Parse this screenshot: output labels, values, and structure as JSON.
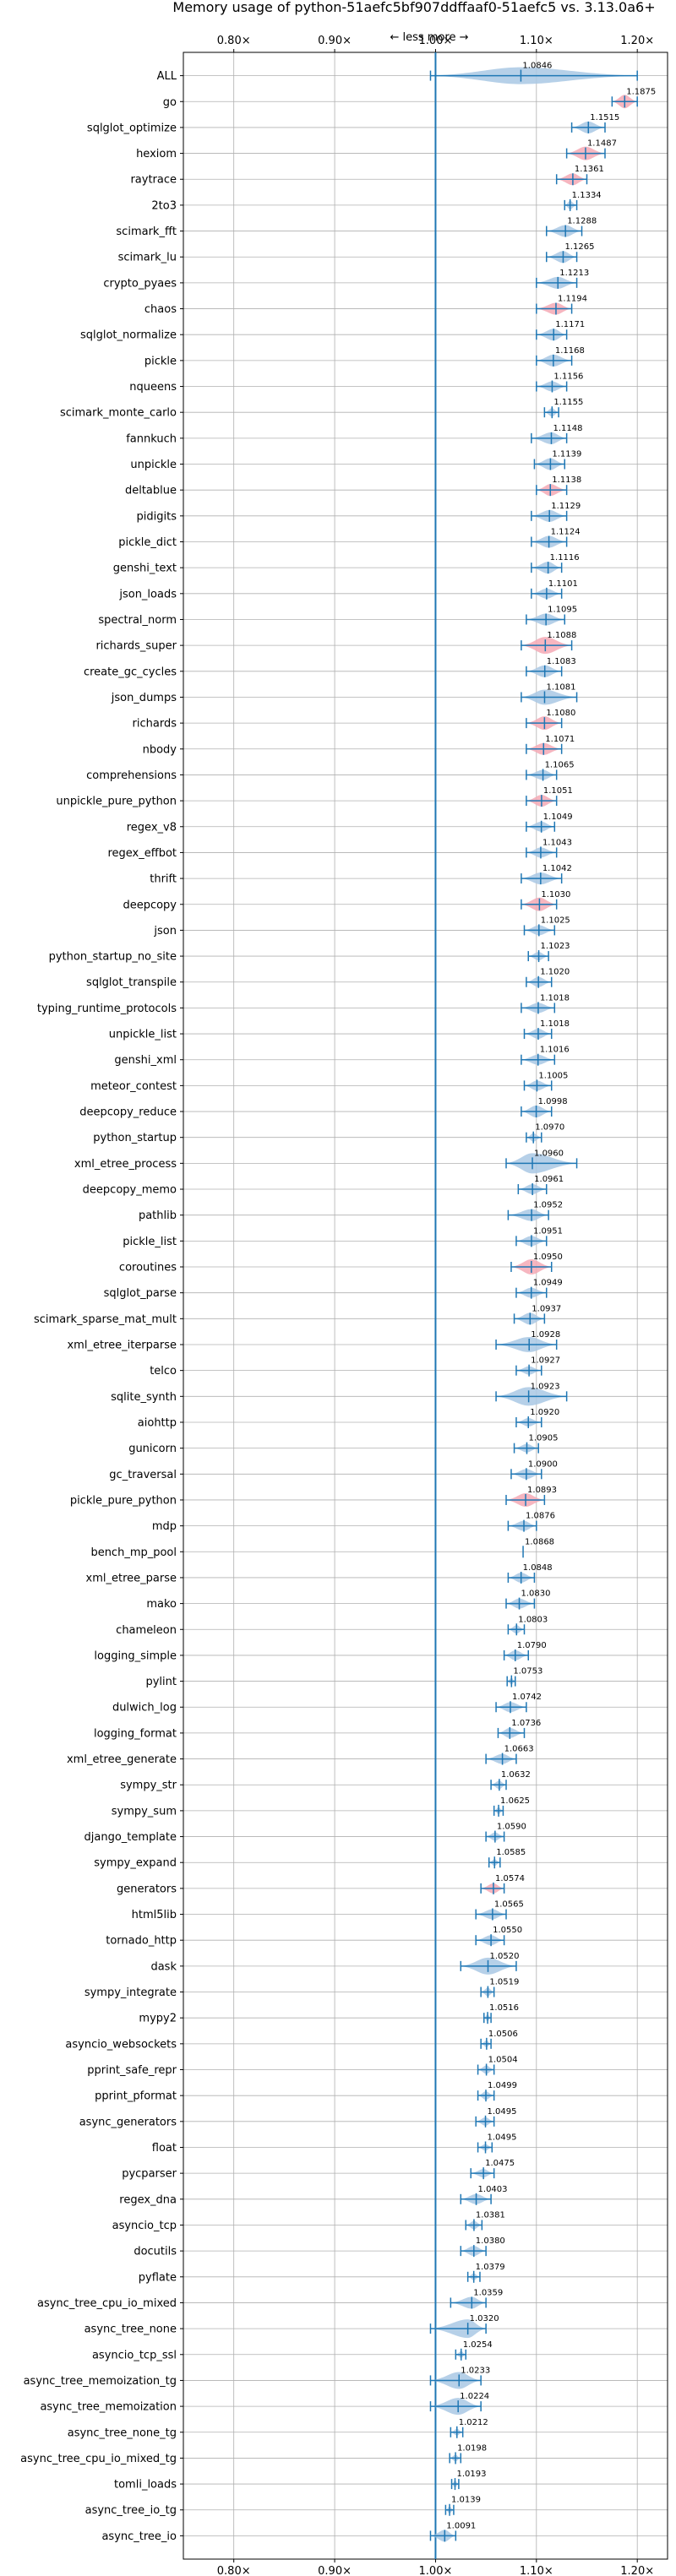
{
  "chart_data": {
    "type": "violin",
    "title": "Memory usage of python-51aefc5bf907ddffaaf0-51aefc5 vs. 3.13.0a6+",
    "annotation": "← less   more →",
    "xlim": [
      0.75,
      1.23
    ],
    "reference_x": 1.0,
    "grid": true,
    "x_ticks": [
      {
        "value": 0.8,
        "label": "0.80×"
      },
      {
        "value": 0.9,
        "label": "0.90×"
      },
      {
        "value": 1.0,
        "label": "1.00×"
      },
      {
        "value": 1.1,
        "label": "1.10×"
      },
      {
        "value": 1.2,
        "label": "1.20×"
      }
    ],
    "colors": {
      "normal": "#1f77b4",
      "normal_fill": "#a9c8e4",
      "highlight_fill": "#f4a9b5",
      "grid": "#b0b0b0"
    },
    "benchmarks": [
      {
        "name": "ALL",
        "value": 1.0846,
        "label": "1.0846",
        "low": 0.995,
        "high": 1.2,
        "halfwidth": 10,
        "highlight": false
      },
      {
        "name": "go",
        "value": 1.1875,
        "label": "1.1875",
        "low": 1.175,
        "high": 1.2,
        "halfwidth": 8,
        "highlight": true
      },
      {
        "name": "sqlglot_optimize",
        "value": 1.1515,
        "label": "1.1515",
        "low": 1.135,
        "high": 1.168,
        "halfwidth": 7,
        "highlight": false
      },
      {
        "name": "hexiom",
        "value": 1.1487,
        "label": "1.1487",
        "low": 1.13,
        "high": 1.168,
        "halfwidth": 8,
        "highlight": true
      },
      {
        "name": "raytrace",
        "value": 1.1361,
        "label": "1.1361",
        "low": 1.12,
        "high": 1.15,
        "halfwidth": 7,
        "highlight": true
      },
      {
        "name": "2to3",
        "value": 1.1334,
        "label": "1.1334",
        "low": 1.128,
        "high": 1.14,
        "halfwidth": 5,
        "highlight": false
      },
      {
        "name": "scimark_fft",
        "value": 1.1288,
        "label": "1.1288",
        "low": 1.11,
        "high": 1.145,
        "halfwidth": 7,
        "highlight": false
      },
      {
        "name": "scimark_lu",
        "value": 1.1265,
        "label": "1.1265",
        "low": 1.11,
        "high": 1.14,
        "halfwidth": 7,
        "highlight": false
      },
      {
        "name": "crypto_pyaes",
        "value": 1.1213,
        "label": "1.1213",
        "low": 1.1,
        "high": 1.14,
        "halfwidth": 7,
        "highlight": false
      },
      {
        "name": "chaos",
        "value": 1.1194,
        "label": "1.1194",
        "low": 1.1,
        "high": 1.135,
        "halfwidth": 7,
        "highlight": true
      },
      {
        "name": "sqlglot_normalize",
        "value": 1.1171,
        "label": "1.1171",
        "low": 1.1,
        "high": 1.13,
        "halfwidth": 7,
        "highlight": false
      },
      {
        "name": "pickle",
        "value": 1.1168,
        "label": "1.1168",
        "low": 1.1,
        "high": 1.135,
        "halfwidth": 7,
        "highlight": false
      },
      {
        "name": "nqueens",
        "value": 1.1156,
        "label": "1.1156",
        "low": 1.1,
        "high": 1.13,
        "halfwidth": 6,
        "highlight": false
      },
      {
        "name": "scimark_monte_carlo",
        "value": 1.1155,
        "label": "1.1155",
        "low": 1.108,
        "high": 1.122,
        "halfwidth": 5,
        "highlight": false
      },
      {
        "name": "fannkuch",
        "value": 1.1148,
        "label": "1.1148",
        "low": 1.095,
        "high": 1.13,
        "halfwidth": 7,
        "highlight": false
      },
      {
        "name": "unpickle",
        "value": 1.1139,
        "label": "1.1139",
        "low": 1.098,
        "high": 1.128,
        "halfwidth": 7,
        "highlight": false
      },
      {
        "name": "deltablue",
        "value": 1.1138,
        "label": "1.1138",
        "low": 1.1,
        "high": 1.13,
        "halfwidth": 7,
        "highlight": true
      },
      {
        "name": "pidigits",
        "value": 1.1129,
        "label": "1.1129",
        "low": 1.095,
        "high": 1.13,
        "halfwidth": 7,
        "highlight": false
      },
      {
        "name": "pickle_dict",
        "value": 1.1124,
        "label": "1.1124",
        "low": 1.095,
        "high": 1.13,
        "halfwidth": 7,
        "highlight": false
      },
      {
        "name": "genshi_text",
        "value": 1.1116,
        "label": "1.1116",
        "low": 1.095,
        "high": 1.125,
        "halfwidth": 7,
        "highlight": false
      },
      {
        "name": "json_loads",
        "value": 1.1101,
        "label": "1.1101",
        "low": 1.095,
        "high": 1.125,
        "halfwidth": 6,
        "highlight": false
      },
      {
        "name": "spectral_norm",
        "value": 1.1095,
        "label": "1.1095",
        "low": 1.09,
        "high": 1.128,
        "halfwidth": 7,
        "highlight": false
      },
      {
        "name": "richards_super",
        "value": 1.1088,
        "label": "1.1088",
        "low": 1.085,
        "high": 1.135,
        "halfwidth": 10,
        "highlight": true
      },
      {
        "name": "create_gc_cycles",
        "value": 1.1083,
        "label": "1.1083",
        "low": 1.09,
        "high": 1.125,
        "halfwidth": 7,
        "highlight": false
      },
      {
        "name": "json_dumps",
        "value": 1.1081,
        "label": "1.1081",
        "low": 1.085,
        "high": 1.14,
        "halfwidth": 9,
        "highlight": false
      },
      {
        "name": "richards",
        "value": 1.108,
        "label": "1.1080",
        "low": 1.09,
        "high": 1.125,
        "halfwidth": 8,
        "highlight": true
      },
      {
        "name": "nbody",
        "value": 1.1071,
        "label": "1.1071",
        "low": 1.09,
        "high": 1.125,
        "halfwidth": 7,
        "highlight": true
      },
      {
        "name": "comprehensions",
        "value": 1.1065,
        "label": "1.1065",
        "low": 1.09,
        "high": 1.12,
        "halfwidth": 6,
        "highlight": false
      },
      {
        "name": "unpickle_pure_python",
        "value": 1.1051,
        "label": "1.1051",
        "low": 1.09,
        "high": 1.12,
        "halfwidth": 7,
        "highlight": true
      },
      {
        "name": "regex_v8",
        "value": 1.1049,
        "label": "1.1049",
        "low": 1.09,
        "high": 1.118,
        "halfwidth": 6,
        "highlight": false
      },
      {
        "name": "regex_effbot",
        "value": 1.1043,
        "label": "1.1043",
        "low": 1.09,
        "high": 1.12,
        "halfwidth": 6,
        "highlight": false
      },
      {
        "name": "thrift",
        "value": 1.1042,
        "label": "1.1042",
        "low": 1.085,
        "high": 1.125,
        "halfwidth": 7,
        "highlight": false
      },
      {
        "name": "deepcopy",
        "value": 1.103,
        "label": "1.1030",
        "low": 1.085,
        "high": 1.12,
        "halfwidth": 8,
        "highlight": true
      },
      {
        "name": "json",
        "value": 1.1025,
        "label": "1.1025",
        "low": 1.088,
        "high": 1.118,
        "halfwidth": 6,
        "highlight": false
      },
      {
        "name": "python_startup_no_site",
        "value": 1.1023,
        "label": "1.1023",
        "low": 1.092,
        "high": 1.112,
        "halfwidth": 5,
        "highlight": false
      },
      {
        "name": "sqlglot_transpile",
        "value": 1.102,
        "label": "1.1020",
        "low": 1.09,
        "high": 1.115,
        "halfwidth": 6,
        "highlight": false
      },
      {
        "name": "typing_runtime_protocols",
        "value": 1.1018,
        "label": "1.1018",
        "low": 1.085,
        "high": 1.118,
        "halfwidth": 6,
        "highlight": false
      },
      {
        "name": "unpickle_list",
        "value": 1.1018,
        "label": "1.1018",
        "low": 1.088,
        "high": 1.115,
        "halfwidth": 6,
        "highlight": false
      },
      {
        "name": "genshi_xml",
        "value": 1.1016,
        "label": "1.1016",
        "low": 1.085,
        "high": 1.118,
        "halfwidth": 6,
        "highlight": false
      },
      {
        "name": "meteor_contest",
        "value": 1.1005,
        "label": "1.1005",
        "low": 1.088,
        "high": 1.115,
        "halfwidth": 6,
        "highlight": false
      },
      {
        "name": "deepcopy_reduce",
        "value": 1.0998,
        "label": "1.0998",
        "low": 1.085,
        "high": 1.115,
        "halfwidth": 7,
        "highlight": false
      },
      {
        "name": "python_startup",
        "value": 1.097,
        "label": "1.0970",
        "low": 1.09,
        "high": 1.105,
        "halfwidth": 5,
        "highlight": false
      },
      {
        "name": "xml_etree_process",
        "value": 1.096,
        "label": "1.0960",
        "low": 1.07,
        "high": 1.14,
        "halfwidth": 12,
        "highlight": false
      },
      {
        "name": "deepcopy_memo",
        "value": 1.0961,
        "label": "1.0961",
        "low": 1.082,
        "high": 1.11,
        "halfwidth": 6,
        "highlight": false
      },
      {
        "name": "pathlib",
        "value": 1.0952,
        "label": "1.0952",
        "low": 1.072,
        "high": 1.112,
        "halfwidth": 7,
        "highlight": false
      },
      {
        "name": "pickle_list",
        "value": 1.0951,
        "label": "1.0951",
        "low": 1.08,
        "high": 1.11,
        "halfwidth": 6,
        "highlight": false
      },
      {
        "name": "coroutines",
        "value": 1.095,
        "label": "1.0950",
        "low": 1.075,
        "high": 1.115,
        "halfwidth": 9,
        "highlight": true
      },
      {
        "name": "sqlglot_parse",
        "value": 1.0949,
        "label": "1.0949",
        "low": 1.08,
        "high": 1.11,
        "halfwidth": 6,
        "highlight": false
      },
      {
        "name": "scimark_sparse_mat_mult",
        "value": 1.0937,
        "label": "1.0937",
        "low": 1.078,
        "high": 1.108,
        "halfwidth": 7,
        "highlight": false
      },
      {
        "name": "xml_etree_iterparse",
        "value": 1.0928,
        "label": "1.0928",
        "low": 1.06,
        "high": 1.12,
        "halfwidth": 9,
        "highlight": false
      },
      {
        "name": "telco",
        "value": 1.0927,
        "label": "1.0927",
        "low": 1.08,
        "high": 1.105,
        "halfwidth": 5,
        "highlight": false
      },
      {
        "name": "sqlite_synth",
        "value": 1.0923,
        "label": "1.0923",
        "low": 1.06,
        "high": 1.13,
        "halfwidth": 11,
        "highlight": false
      },
      {
        "name": "aiohttp",
        "value": 1.092,
        "label": "1.0920",
        "low": 1.08,
        "high": 1.105,
        "halfwidth": 5,
        "highlight": false
      },
      {
        "name": "gunicorn",
        "value": 1.0905,
        "label": "1.0905",
        "low": 1.078,
        "high": 1.102,
        "halfwidth": 5,
        "highlight": false
      },
      {
        "name": "gc_traversal",
        "value": 1.09,
        "label": "1.0900",
        "low": 1.075,
        "high": 1.105,
        "halfwidth": 6,
        "highlight": false
      },
      {
        "name": "pickle_pure_python",
        "value": 1.0893,
        "label": "1.0893",
        "low": 1.07,
        "high": 1.108,
        "halfwidth": 8,
        "highlight": true
      },
      {
        "name": "mdp",
        "value": 1.0876,
        "label": "1.0876",
        "low": 1.072,
        "high": 1.1,
        "halfwidth": 6,
        "highlight": false
      },
      {
        "name": "bench_mp_pool",
        "value": 1.0868,
        "label": "1.0868",
        "low": 1.0868,
        "high": 1.0868,
        "halfwidth": 0,
        "highlight": false
      },
      {
        "name": "xml_etree_parse",
        "value": 1.0848,
        "label": "1.0848",
        "low": 1.072,
        "high": 1.098,
        "halfwidth": 6,
        "highlight": false
      },
      {
        "name": "mako",
        "value": 1.083,
        "label": "1.0830",
        "low": 1.07,
        "high": 1.098,
        "halfwidth": 6,
        "highlight": false
      },
      {
        "name": "chameleon",
        "value": 1.0803,
        "label": "1.0803",
        "low": 1.072,
        "high": 1.088,
        "halfwidth": 5,
        "highlight": false
      },
      {
        "name": "logging_simple",
        "value": 1.079,
        "label": "1.0790",
        "low": 1.068,
        "high": 1.092,
        "halfwidth": 6,
        "highlight": false
      },
      {
        "name": "pylint",
        "value": 1.0753,
        "label": "1.0753",
        "low": 1.071,
        "high": 1.079,
        "halfwidth": 4,
        "highlight": false
      },
      {
        "name": "dulwich_log",
        "value": 1.0742,
        "label": "1.0742",
        "low": 1.06,
        "high": 1.09,
        "halfwidth": 6,
        "highlight": false
      },
      {
        "name": "logging_format",
        "value": 1.0736,
        "label": "1.0736",
        "low": 1.062,
        "high": 1.088,
        "halfwidth": 6,
        "highlight": false
      },
      {
        "name": "xml_etree_generate",
        "value": 1.0663,
        "label": "1.0663",
        "low": 1.05,
        "high": 1.08,
        "halfwidth": 6,
        "highlight": false
      },
      {
        "name": "sympy_str",
        "value": 1.0632,
        "label": "1.0632",
        "low": 1.055,
        "high": 1.07,
        "halfwidth": 5,
        "highlight": false
      },
      {
        "name": "sympy_sum",
        "value": 1.0625,
        "label": "1.0625",
        "low": 1.058,
        "high": 1.067,
        "halfwidth": 4,
        "highlight": false
      },
      {
        "name": "django_template",
        "value": 1.059,
        "label": "1.0590",
        "low": 1.05,
        "high": 1.068,
        "halfwidth": 5,
        "highlight": false
      },
      {
        "name": "sympy_expand",
        "value": 1.0585,
        "label": "1.0585",
        "low": 1.053,
        "high": 1.064,
        "halfwidth": 4,
        "highlight": false
      },
      {
        "name": "generators",
        "value": 1.0574,
        "label": "1.0574",
        "low": 1.045,
        "high": 1.068,
        "halfwidth": 6,
        "highlight": true
      },
      {
        "name": "html5lib",
        "value": 1.0565,
        "label": "1.0565",
        "low": 1.04,
        "high": 1.07,
        "halfwidth": 6,
        "highlight": false
      },
      {
        "name": "tornado_http",
        "value": 1.055,
        "label": "1.0550",
        "low": 1.04,
        "high": 1.068,
        "halfwidth": 6,
        "highlight": false
      },
      {
        "name": "dask",
        "value": 1.052,
        "label": "1.0520",
        "low": 1.025,
        "high": 1.08,
        "halfwidth": 10,
        "highlight": false
      },
      {
        "name": "sympy_integrate",
        "value": 1.0519,
        "label": "1.0519",
        "low": 1.045,
        "high": 1.058,
        "halfwidth": 5,
        "highlight": false
      },
      {
        "name": "mypy2",
        "value": 1.0516,
        "label": "1.0516",
        "low": 1.048,
        "high": 1.055,
        "halfwidth": 4,
        "highlight": false
      },
      {
        "name": "asyncio_websockets",
        "value": 1.0506,
        "label": "1.0506",
        "low": 1.045,
        "high": 1.055,
        "halfwidth": 4,
        "highlight": false
      },
      {
        "name": "pprint_safe_repr",
        "value": 1.0504,
        "label": "1.0504",
        "low": 1.042,
        "high": 1.058,
        "halfwidth": 5,
        "highlight": false
      },
      {
        "name": "pprint_pformat",
        "value": 1.0499,
        "label": "1.0499",
        "low": 1.042,
        "high": 1.058,
        "halfwidth": 5,
        "highlight": false
      },
      {
        "name": "async_generators",
        "value": 1.0495,
        "label": "1.0495",
        "low": 1.04,
        "high": 1.058,
        "halfwidth": 5,
        "highlight": false
      },
      {
        "name": "float",
        "value": 1.0495,
        "label": "1.0495",
        "low": 1.042,
        "high": 1.056,
        "halfwidth": 4,
        "highlight": false
      },
      {
        "name": "pycparser",
        "value": 1.0475,
        "label": "1.0475",
        "low": 1.035,
        "high": 1.058,
        "halfwidth": 5,
        "highlight": false
      },
      {
        "name": "regex_dna",
        "value": 1.0403,
        "label": "1.0403",
        "low": 1.025,
        "high": 1.055,
        "halfwidth": 6,
        "highlight": false
      },
      {
        "name": "asyncio_tcp",
        "value": 1.0381,
        "label": "1.0381",
        "low": 1.03,
        "high": 1.046,
        "halfwidth": 5,
        "highlight": false
      },
      {
        "name": "docutils",
        "value": 1.038,
        "label": "1.0380",
        "low": 1.025,
        "high": 1.05,
        "halfwidth": 6,
        "highlight": false
      },
      {
        "name": "pyflate",
        "value": 1.0379,
        "label": "1.0379",
        "low": 1.032,
        "high": 1.044,
        "halfwidth": 4,
        "highlight": false
      },
      {
        "name": "async_tree_cpu_io_mixed",
        "value": 1.0359,
        "label": "1.0359",
        "low": 1.015,
        "high": 1.05,
        "halfwidth": 7,
        "highlight": false
      },
      {
        "name": "async_tree_none",
        "value": 1.032,
        "label": "1.0320",
        "low": 0.995,
        "high": 1.05,
        "halfwidth": 11,
        "highlight": false
      },
      {
        "name": "asyncio_tcp_ssl",
        "value": 1.0254,
        "label": "1.0254",
        "low": 1.02,
        "high": 1.03,
        "halfwidth": 4,
        "highlight": false
      },
      {
        "name": "async_tree_memoization_tg",
        "value": 1.0233,
        "label": "1.0233",
        "low": 0.995,
        "high": 1.045,
        "halfwidth": 10,
        "highlight": false
      },
      {
        "name": "async_tree_memoization",
        "value": 1.0224,
        "label": "1.0224",
        "low": 0.995,
        "high": 1.045,
        "halfwidth": 10,
        "highlight": false
      },
      {
        "name": "async_tree_none_tg",
        "value": 1.0212,
        "label": "1.0212",
        "low": 1.015,
        "high": 1.027,
        "halfwidth": 4,
        "highlight": false
      },
      {
        "name": "async_tree_cpu_io_mixed_tg",
        "value": 1.0198,
        "label": "1.0198",
        "low": 1.014,
        "high": 1.025,
        "halfwidth": 4,
        "highlight": false
      },
      {
        "name": "tomli_loads",
        "value": 1.0193,
        "label": "1.0193",
        "low": 1.016,
        "high": 1.023,
        "halfwidth": 4,
        "highlight": false
      },
      {
        "name": "async_tree_io_tg",
        "value": 1.0139,
        "label": "1.0139",
        "low": 1.01,
        "high": 1.018,
        "halfwidth": 4,
        "highlight": false
      },
      {
        "name": "async_tree_io",
        "value": 1.0091,
        "label": "1.0091",
        "low": 0.995,
        "high": 1.02,
        "halfwidth": 7,
        "highlight": false
      }
    ]
  }
}
